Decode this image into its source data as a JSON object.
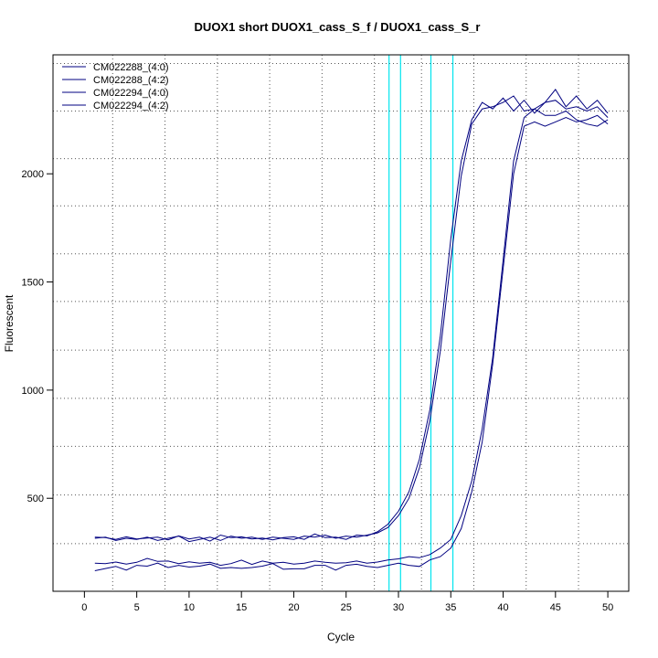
{
  "chart_data": {
    "type": "line",
    "title": "DUOX1 short DUOX1_cass_S_f / DUOX1_cass_S_r",
    "xlabel": "Cycle",
    "ylabel": "Fluorescent",
    "xlim": [
      -3,
      52
    ],
    "ylim": [
      70,
      2550
    ],
    "x_ticks": [
      0,
      5,
      10,
      15,
      20,
      25,
      30,
      35,
      40,
      45,
      50
    ],
    "y_ticks": [
      500,
      1000,
      1500,
      2000
    ],
    "grid": "dotted",
    "grid_x": [
      2.7,
      7.7,
      12.7,
      17.7,
      22.7,
      27.7,
      32.2,
      37.2,
      42.2,
      47.2
    ],
    "grid_y": [
      290,
      515,
      740,
      962,
      1185,
      1410,
      1630,
      1852,
      2070,
      2290,
      2510
    ],
    "threshold_color": "#00e5ee",
    "threshold_lines": [
      29.1,
      30.2,
      33.1,
      35.2
    ],
    "series_color": "#000080",
    "legend_position": "top-left",
    "x": [
      1,
      2,
      3,
      4,
      5,
      6,
      7,
      8,
      9,
      10,
      11,
      12,
      13,
      14,
      15,
      16,
      17,
      18,
      19,
      20,
      21,
      22,
      23,
      24,
      25,
      26,
      27,
      28,
      29,
      30,
      31,
      32,
      33,
      34,
      35,
      36,
      37,
      38,
      39,
      40,
      41,
      42,
      43,
      44,
      45,
      46,
      47,
      48,
      49,
      50
    ],
    "series": [
      {
        "name": "CM022288_(4:0)",
        "values": [
          315,
          320,
          305,
          315,
          310,
          320,
          305,
          315,
          325,
          300,
          310,
          320,
          305,
          325,
          315,
          320,
          310,
          320,
          315,
          310,
          325,
          320,
          330,
          315,
          325,
          320,
          330,
          340,
          365,
          420,
          500,
          640,
          860,
          1180,
          1600,
          1990,
          2230,
          2300,
          2310,
          2330,
          2360,
          2290,
          2300,
          2330,
          2340,
          2300,
          2310,
          2290,
          2310,
          2260
        ]
      },
      {
        "name": "CM022288_(4:2)",
        "values": [
          320,
          318,
          310,
          322,
          312,
          316,
          320,
          308,
          326,
          312,
          320,
          302,
          330,
          318,
          322,
          312,
          316,
          308,
          318,
          322,
          310,
          335,
          318,
          320,
          310,
          330,
          326,
          345,
          380,
          440,
          530,
          680,
          910,
          1250,
          1700,
          2060,
          2250,
          2330,
          2300,
          2350,
          2290,
          2340,
          2280,
          2330,
          2390,
          2310,
          2360,
          2300,
          2340,
          2280
        ]
      },
      {
        "name": "CM022294_(4:0)",
        "values": [
          200,
          198,
          205,
          196,
          204,
          222,
          208,
          210,
          198,
          206,
          200,
          204,
          190,
          198,
          214,
          194,
          210,
          200,
          204,
          196,
          200,
          210,
          204,
          200,
          202,
          210,
          200,
          205,
          215,
          220,
          230,
          225,
          240,
          270,
          310,
          420,
          580,
          820,
          1150,
          1600,
          2060,
          2260,
          2300,
          2270,
          2270,
          2290,
          2250,
          2230,
          2220,
          2250
        ]
      },
      {
        "name": "CM022294_(4:2)",
        "values": [
          165,
          175,
          185,
          168,
          190,
          186,
          200,
          180,
          190,
          182,
          186,
          196,
          176,
          180,
          176,
          180,
          186,
          198,
          172,
          174,
          174,
          190,
          190,
          168,
          190,
          195,
          185,
          180,
          190,
          200,
          190,
          185,
          215,
          230,
          270,
          360,
          530,
          760,
          1120,
          1560,
          2000,
          2220,
          2240,
          2220,
          2240,
          2260,
          2240,
          2250,
          2270,
          2230
        ]
      }
    ]
  }
}
